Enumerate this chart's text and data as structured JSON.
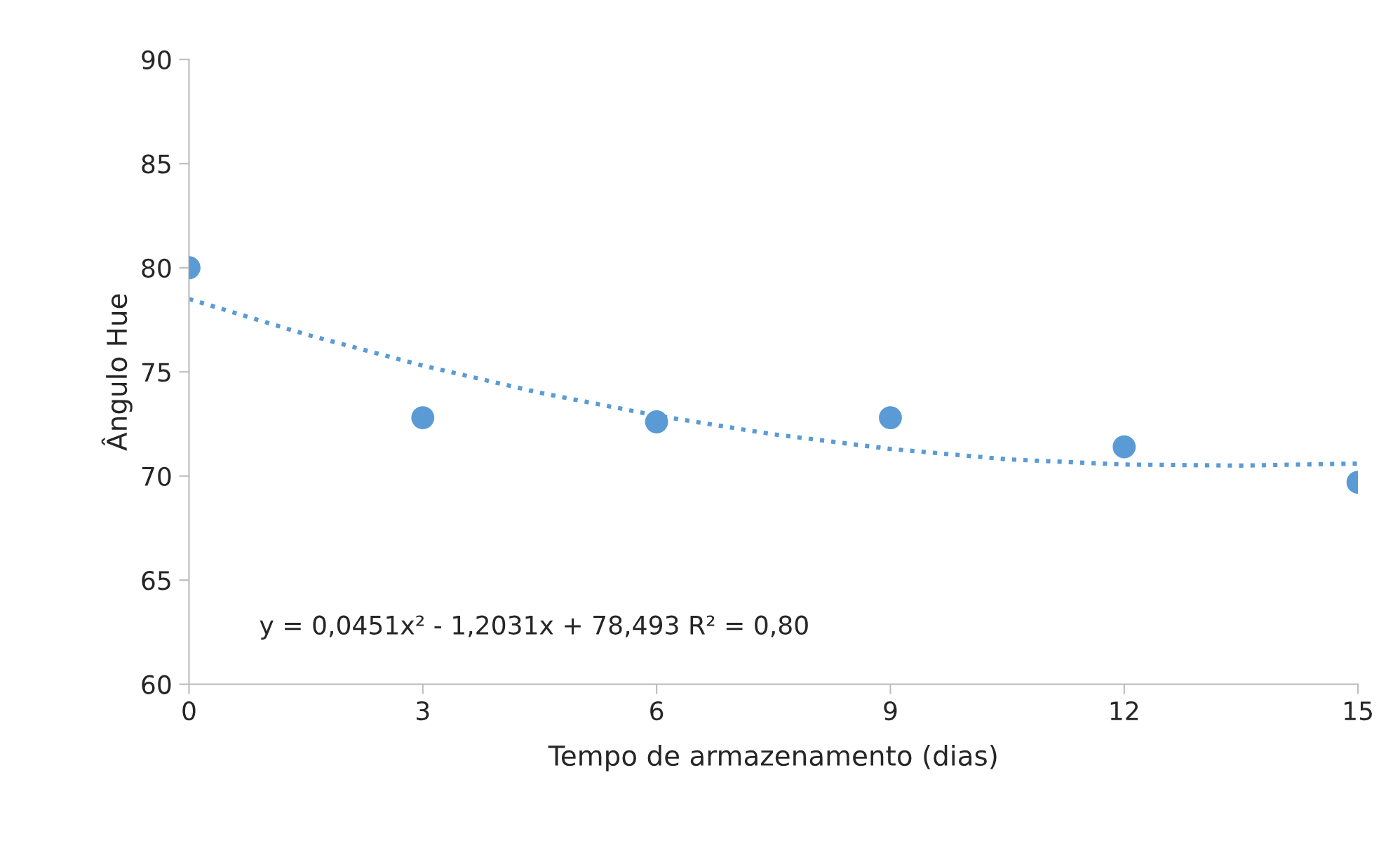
{
  "chart_data": {
    "type": "scatter",
    "xlabel": "Tempo de armazenamento (dias)",
    "ylabel": "Ângulo Hue",
    "xlim": [
      0,
      15
    ],
    "xticks": [
      0,
      3,
      6,
      9,
      12,
      15
    ],
    "ylim": [
      60,
      90
    ],
    "yticks": [
      60,
      65,
      70,
      75,
      80,
      85,
      90
    ],
    "grid": false,
    "legend": false,
    "marker": "circle",
    "series": [
      {
        "color": "#5b9bd5",
        "x": [
          0,
          3,
          6,
          9,
          12,
          15
        ],
        "values": [
          80.0,
          72.8,
          72.6,
          72.8,
          71.4,
          69.7
        ]
      },
      {
        "type": "line",
        "color": "#5b9bd5",
        "line_style": "dotted",
        "marker": "none",
        "x": [
          0,
          1.5,
          3,
          4.5,
          6,
          7.5,
          9,
          10.5,
          12,
          13.5,
          15
        ],
        "values": [
          78.5,
          76.8,
          75.3,
          74.0,
          72.9,
          72.0,
          71.3,
          70.8,
          70.55,
          70.5,
          70.6
        ]
      }
    ],
    "annotations": [
      "y = 0,0451x² - 1,2031x + 78,493 R² = 0,80"
    ]
  }
}
